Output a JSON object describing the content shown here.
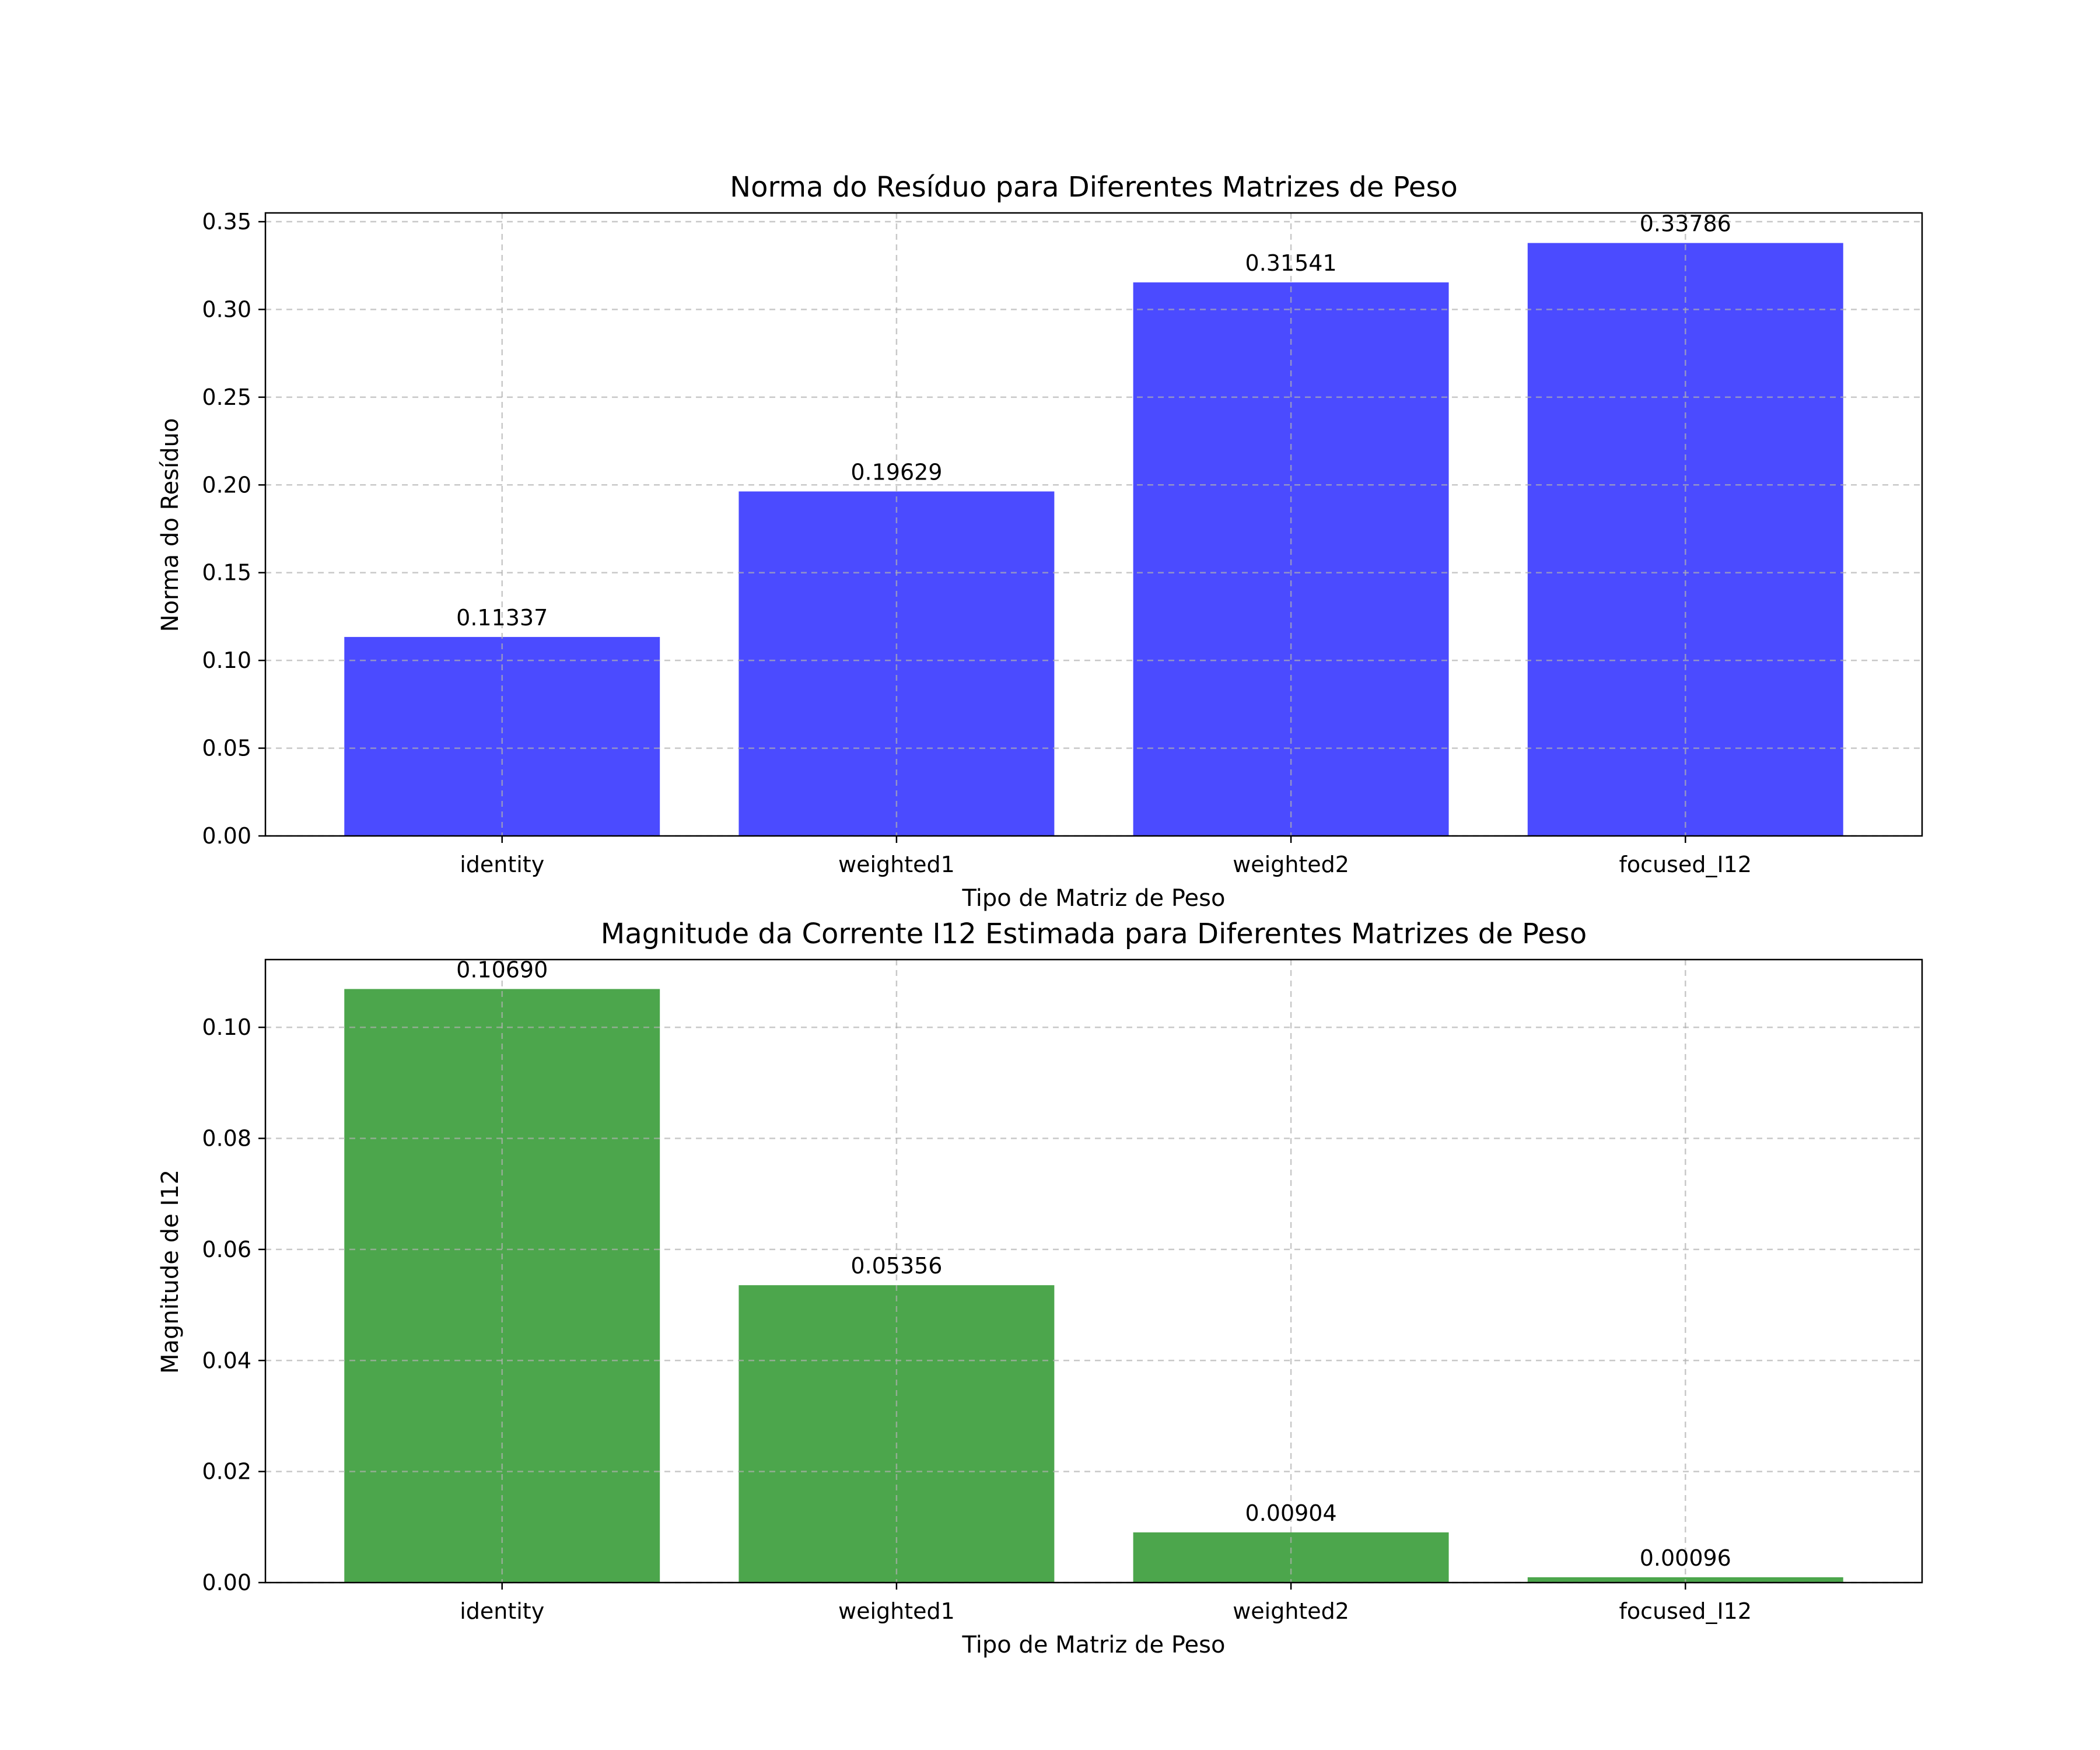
{
  "chart_data": [
    {
      "type": "bar",
      "title": "Norma do Resíduo para Diferentes Matrizes de Peso",
      "xlabel": "Tipo de Matriz de Peso",
      "ylabel": "Norma do Resíduo",
      "categories": [
        "identity",
        "weighted1",
        "weighted2",
        "focused_I12"
      ],
      "values": [
        0.11337,
        0.19629,
        0.31541,
        0.33786
      ],
      "value_labels": [
        "0.11337",
        "0.19629",
        "0.31541",
        "0.33786"
      ],
      "ylim": [
        0,
        0.355
      ],
      "yticks": [
        0,
        0.05,
        0.1,
        0.15,
        0.2,
        0.25,
        0.3,
        0.35
      ],
      "ytick_labels": [
        "0.00",
        "0.05",
        "0.10",
        "0.15",
        "0.20",
        "0.25",
        "0.30",
        "0.35"
      ],
      "bar_color": "#4b4bff",
      "grid": true,
      "legend": "none"
    },
    {
      "type": "bar",
      "title": "Magnitude da Corrente I12 Estimada para Diferentes Matrizes de Peso",
      "xlabel": "Tipo de Matriz de Peso",
      "ylabel": "Magnitude de I12",
      "categories": [
        "identity",
        "weighted1",
        "weighted2",
        "focused_I12"
      ],
      "values": [
        0.1069,
        0.05356,
        0.00904,
        0.00096
      ],
      "value_labels": [
        "0.10690",
        "0.05356",
        "0.00904",
        "0.00096"
      ],
      "ylim": [
        0,
        0.1122
      ],
      "yticks": [
        0,
        0.02,
        0.04,
        0.06,
        0.08,
        0.1
      ],
      "ytick_labels": [
        "0.00",
        "0.02",
        "0.04",
        "0.06",
        "0.08",
        "0.10"
      ],
      "bar_color": "#4ca64c",
      "grid": true,
      "legend": "none"
    }
  ]
}
